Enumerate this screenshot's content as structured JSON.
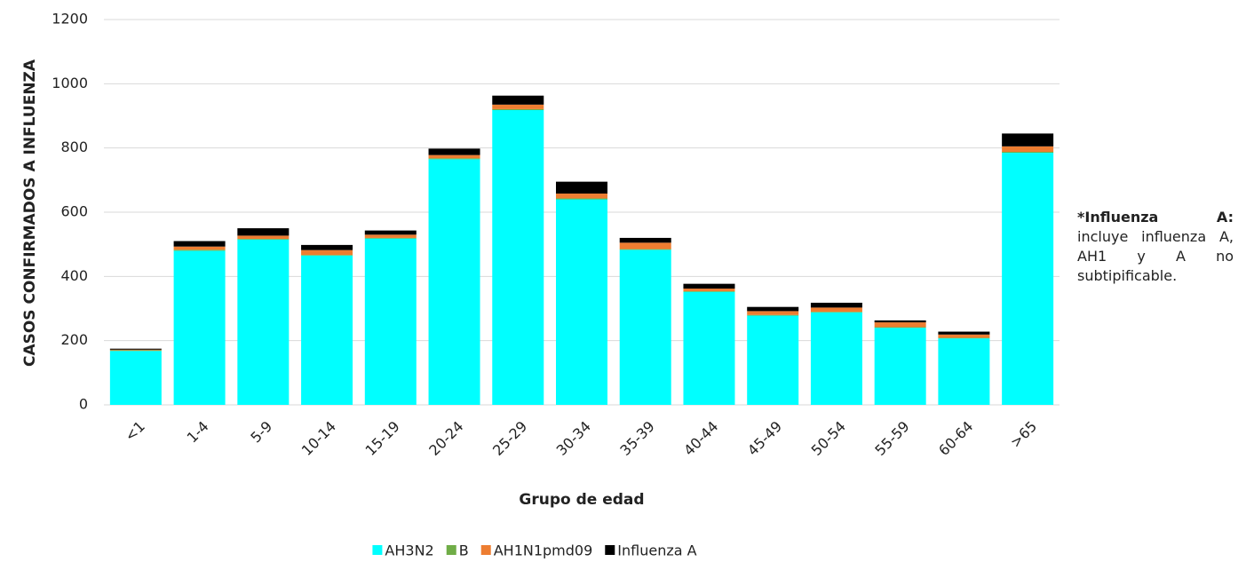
{
  "chart_data": {
    "type": "stacked_bar",
    "y_label": "CASOS CONFIRMADOS A INFLUENZA",
    "x_label": "Grupo de edad",
    "categories": [
      "<1",
      "1-4",
      "5-9",
      "10-14",
      "15-19",
      "20-24",
      "25-29",
      "30-34",
      "35-39",
      "40-44",
      "45-49",
      "50-54",
      "55-59",
      "60-64",
      ">65"
    ],
    "series": [
      {
        "name": "AH3N2",
        "color": "#00ffff",
        "values": [
          168,
          480,
          515,
          465,
          518,
          765,
          918,
          640,
          483,
          352,
          278,
          288,
          240,
          207,
          785
        ]
      },
      {
        "name": "B",
        "color": "#70ad47",
        "values": [
          2,
          3,
          2,
          2,
          2,
          3,
          3,
          3,
          2,
          2,
          2,
          2,
          2,
          2,
          3
        ]
      },
      {
        "name": "AH1N1pmd09",
        "color": "#ed7d31",
        "values": [
          2,
          10,
          10,
          15,
          10,
          10,
          14,
          15,
          20,
          8,
          12,
          13,
          15,
          10,
          17
        ]
      },
      {
        "name": "Influenza A",
        "color": "#000000",
        "values": [
          3,
          17,
          23,
          16,
          13,
          20,
          28,
          37,
          15,
          15,
          13,
          15,
          6,
          9,
          40
        ]
      }
    ],
    "ylim": [
      0,
      1200
    ],
    "yticks": [
      0,
      200,
      400,
      600,
      800,
      1000,
      1200
    ],
    "grid": true,
    "legend": "bottom",
    "annotation_title": "*Influenza A:",
    "annotation_text": "incluye influenza A, AH1 y A no subtipificable."
  }
}
